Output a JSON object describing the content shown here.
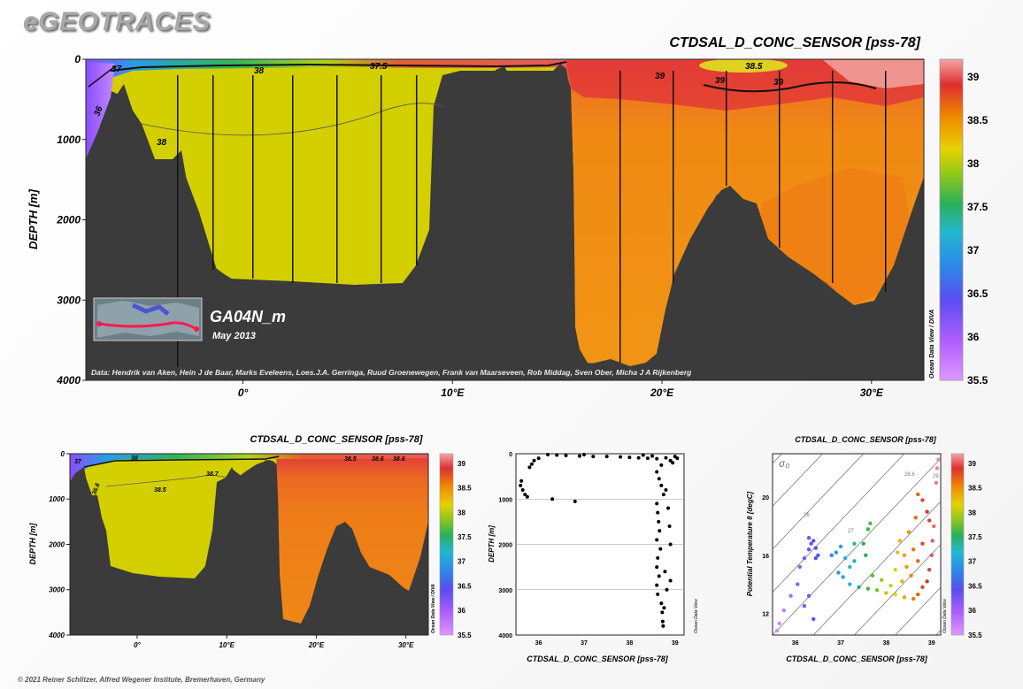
{
  "brand": "eGEOTRACES",
  "copyright": "© 2021 Reiner Schlitzer, Alfred Wegener Institute, Bremerhaven, Germany",
  "colors": {
    "land": "#3b3b3b",
    "accent": "#d8d000",
    "background": "#f4f4f4"
  },
  "chart_data": [
    {
      "type": "heatmap",
      "name": "main-section",
      "title": "CTDSAL_D_CONC_SENSOR [pss-78]",
      "xlabel": "",
      "ylabel": "DEPTH [m]",
      "xticks": [
        "0°",
        "10°E",
        "20°E",
        "30°E"
      ],
      "xtick_values": [
        0,
        10,
        20,
        30
      ],
      "xlim": [
        -7.5,
        32.5
      ],
      "yticks": [
        0,
        1000,
        2000,
        3000,
        4000
      ],
      "ylim": [
        4000,
        0
      ],
      "contour_labels": [
        "37",
        "38",
        "37.5",
        "38.5",
        "39",
        "39",
        "39",
        "36",
        "38"
      ],
      "colorbar": {
        "ticks": [
          39,
          38.5,
          38,
          37.5,
          37,
          36.5,
          36,
          35.5
        ],
        "range": [
          35.5,
          39.2
        ],
        "label": "Ocean Data View / DIVA"
      },
      "inset": {
        "cruise": "GA04N_m",
        "date": "May 2013"
      },
      "credits": "Data: Hendrik van Aken, Hein J de Baar, Marks Eveleens, Loes.J.A. Gerringa, Ruud Groenewegen, Frank van Maarseveen, Rob Middag, Sven Ober, Micha J A Rijkenberg"
    },
    {
      "type": "heatmap",
      "name": "small-section",
      "title": "CTDSAL_D_CONC_SENSOR [pss-78]",
      "xlabel": "",
      "ylabel": "DEPTH [m]",
      "xticks": [
        "0°",
        "10°E",
        "20°E",
        "30°E"
      ],
      "xtick_values": [
        0,
        10,
        20,
        30
      ],
      "xlim": [
        -7.5,
        32.5
      ],
      "yticks": [
        0,
        1000,
        2000,
        3000,
        4000
      ],
      "ylim": [
        4000,
        0
      ],
      "contour_labels": [
        "37",
        "38",
        "38.7",
        "38.5",
        "38.5",
        "38.6",
        "38.6",
        "36.6"
      ],
      "colorbar": {
        "ticks": [
          39,
          38.5,
          38,
          37.5,
          37,
          36.5,
          36,
          35.5
        ],
        "range": [
          35.5,
          39.2
        ],
        "label": "Ocean Data View / DIVA"
      }
    },
    {
      "type": "scatter",
      "name": "profile-scatter",
      "xlabel": "CTDSAL_D_CONC_SENSOR [pss-78]",
      "ylabel": "DEPTH [m]",
      "xticks": [
        36,
        37,
        38,
        39
      ],
      "xlim": [
        35.5,
        39.2
      ],
      "yticks": [
        0,
        1000,
        2000,
        3000,
        4000
      ],
      "ylim": [
        4000,
        0
      ],
      "side_label": "Ocean Data View",
      "points": [
        [
          35.6,
          700
        ],
        [
          35.65,
          800
        ],
        [
          35.7,
          900
        ],
        [
          35.75,
          950
        ],
        [
          35.62,
          600
        ],
        [
          35.8,
          300
        ],
        [
          35.9,
          150
        ],
        [
          36.0,
          100
        ],
        [
          35.85,
          230
        ],
        [
          36.3,
          1000
        ],
        [
          36.8,
          1050
        ],
        [
          36.2,
          20
        ],
        [
          36.4,
          30
        ],
        [
          36.6,
          40
        ],
        [
          36.9,
          50
        ],
        [
          37.2,
          60
        ],
        [
          37.5,
          60
        ],
        [
          37.8,
          70
        ],
        [
          38.0,
          80
        ],
        [
          38.2,
          90
        ],
        [
          38.4,
          100
        ],
        [
          38.6,
          110
        ],
        [
          38.8,
          90
        ],
        [
          39.0,
          60
        ],
        [
          38.9,
          150
        ],
        [
          38.7,
          250
        ],
        [
          38.6,
          400
        ],
        [
          38.65,
          550
        ],
        [
          38.7,
          700
        ],
        [
          38.75,
          900
        ],
        [
          38.6,
          1100
        ],
        [
          38.62,
          1300
        ],
        [
          38.64,
          1500
        ],
        [
          38.66,
          1700
        ],
        [
          38.6,
          1900
        ],
        [
          38.68,
          2100
        ],
        [
          38.62,
          2300
        ],
        [
          38.6,
          2500
        ],
        [
          38.65,
          2700
        ],
        [
          38.6,
          2900
        ],
        [
          38.62,
          3100
        ],
        [
          38.7,
          3300
        ],
        [
          38.72,
          3500
        ],
        [
          38.73,
          3700
        ],
        [
          38.74,
          3800
        ],
        [
          38.8,
          800
        ],
        [
          38.85,
          1200
        ],
        [
          38.9,
          2000
        ],
        [
          38.95,
          200
        ],
        [
          39.05,
          100
        ],
        [
          38.5,
          50
        ],
        [
          38.3,
          30
        ],
        [
          37.0,
          20
        ],
        [
          38.78,
          2600
        ],
        [
          38.82,
          3000
        ],
        [
          38.76,
          3400
        ],
        [
          38.9,
          2800
        ],
        [
          38.88,
          1600
        ]
      ]
    },
    {
      "type": "scatter",
      "name": "ts-scatter",
      "title": "CTDSAL_D_CONC_SENSOR [pss-78]",
      "xlabel": "CTDSAL_D_CONC_SENSOR [pss-78]",
      "ylabel": "Potential Temperature θ [degC]",
      "xticks": [
        36,
        37,
        38,
        39
      ],
      "xlim": [
        35.5,
        39.2
      ],
      "yticks": [
        12,
        16,
        20
      ],
      "ylim": [
        10.5,
        23
      ],
      "density_label": "σ₀",
      "isopycnal_labels": [
        "26",
        "26",
        "27",
        "28.6",
        "29"
      ],
      "colorbar": {
        "ticks": [
          39,
          38.5,
          38,
          37.5,
          37,
          36.5,
          36,
          35.5
        ],
        "range": [
          35.5,
          39.2
        ],
        "label": "Ocean Data View"
      },
      "side_label": "Ocean Data View",
      "points": [
        [
          35.6,
          10.8
        ],
        [
          35.65,
          11.3
        ],
        [
          35.75,
          12.2
        ],
        [
          35.9,
          13.2
        ],
        [
          36.05,
          14.0
        ],
        [
          36.1,
          15.2
        ],
        [
          36.2,
          15.8
        ],
        [
          36.3,
          16.4
        ],
        [
          36.35,
          16.8
        ],
        [
          36.3,
          17.2
        ],
        [
          36.4,
          17.0
        ],
        [
          36.45,
          16.5
        ],
        [
          36.5,
          16.0
        ],
        [
          36.45,
          15.8
        ],
        [
          36.3,
          13.2
        ],
        [
          36.4,
          11.6
        ],
        [
          36.2,
          12.5
        ],
        [
          36.8,
          16.0
        ],
        [
          36.9,
          16.2
        ],
        [
          37.0,
          16.6
        ],
        [
          37.1,
          15.8
        ],
        [
          36.95,
          14.8
        ],
        [
          37.05,
          14.5
        ],
        [
          37.2,
          15.2
        ],
        [
          37.3,
          15.6
        ],
        [
          37.3,
          16.8
        ],
        [
          37.5,
          16.8
        ],
        [
          37.55,
          16.0
        ],
        [
          37.6,
          17.8
        ],
        [
          37.65,
          18.2
        ],
        [
          37.2,
          14.0
        ],
        [
          37.4,
          13.8
        ],
        [
          37.6,
          13.7
        ],
        [
          37.8,
          13.6
        ],
        [
          38.0,
          13.4
        ],
        [
          38.2,
          13.3
        ],
        [
          38.4,
          13.1
        ],
        [
          38.6,
          13.0
        ],
        [
          38.7,
          13.3
        ],
        [
          38.8,
          13.8
        ],
        [
          38.9,
          14.2
        ],
        [
          38.95,
          15.0
        ],
        [
          39.0,
          16.0
        ],
        [
          39.02,
          17.0
        ],
        [
          39.05,
          18.0
        ],
        [
          38.9,
          19.0
        ],
        [
          38.8,
          19.8
        ],
        [
          38.7,
          20.2
        ],
        [
          39.1,
          21.0
        ],
        [
          39.12,
          22.0
        ],
        [
          39.15,
          22.6
        ],
        [
          38.4,
          16.0
        ],
        [
          38.3,
          17.0
        ],
        [
          38.5,
          17.6
        ],
        [
          38.6,
          16.4
        ],
        [
          38.7,
          15.6
        ],
        [
          38.55,
          14.6
        ],
        [
          38.35,
          14.2
        ],
        [
          38.2,
          15.0
        ],
        [
          38.8,
          16.8
        ],
        [
          38.95,
          18.4
        ],
        [
          38.65,
          18.6
        ],
        [
          38.45,
          15.2
        ],
        [
          38.25,
          16.2
        ],
        [
          38.1,
          13.9
        ],
        [
          37.9,
          14.3
        ],
        [
          37.7,
          14.6
        ]
      ]
    }
  ]
}
